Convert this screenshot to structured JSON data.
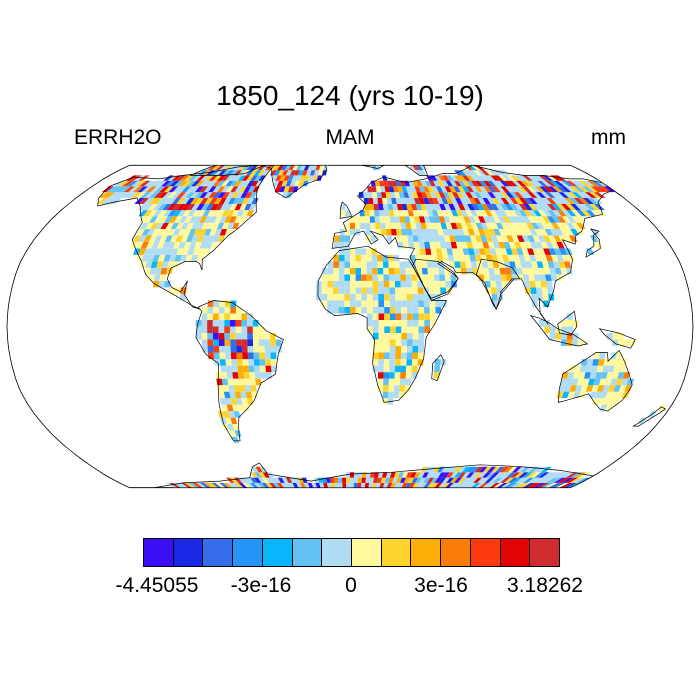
{
  "title": "1850_124 (yrs 10-19)",
  "variable": "ERRH2O",
  "season": "MAM",
  "units": "mm",
  "colorbar": {
    "colors": [
      "#3a0ff5",
      "#1a29e6",
      "#356ce8",
      "#2694f7",
      "#0ab6fb",
      "#63c2f1",
      "#b0dcf3",
      "#fff89c",
      "#fdd42e",
      "#fbae07",
      "#fa7c0b",
      "#fb3a0e",
      "#e20303",
      "#d02c2f"
    ],
    "tick_labels": [
      "-4.45055",
      "-3e-16",
      "0",
      "3e-16",
      "3.18262"
    ]
  },
  "map_info": {
    "projection": "robinson",
    "land_palette_weights": "mostly yellow / light-blue noise with red & blue extremes at high latitudes"
  }
}
